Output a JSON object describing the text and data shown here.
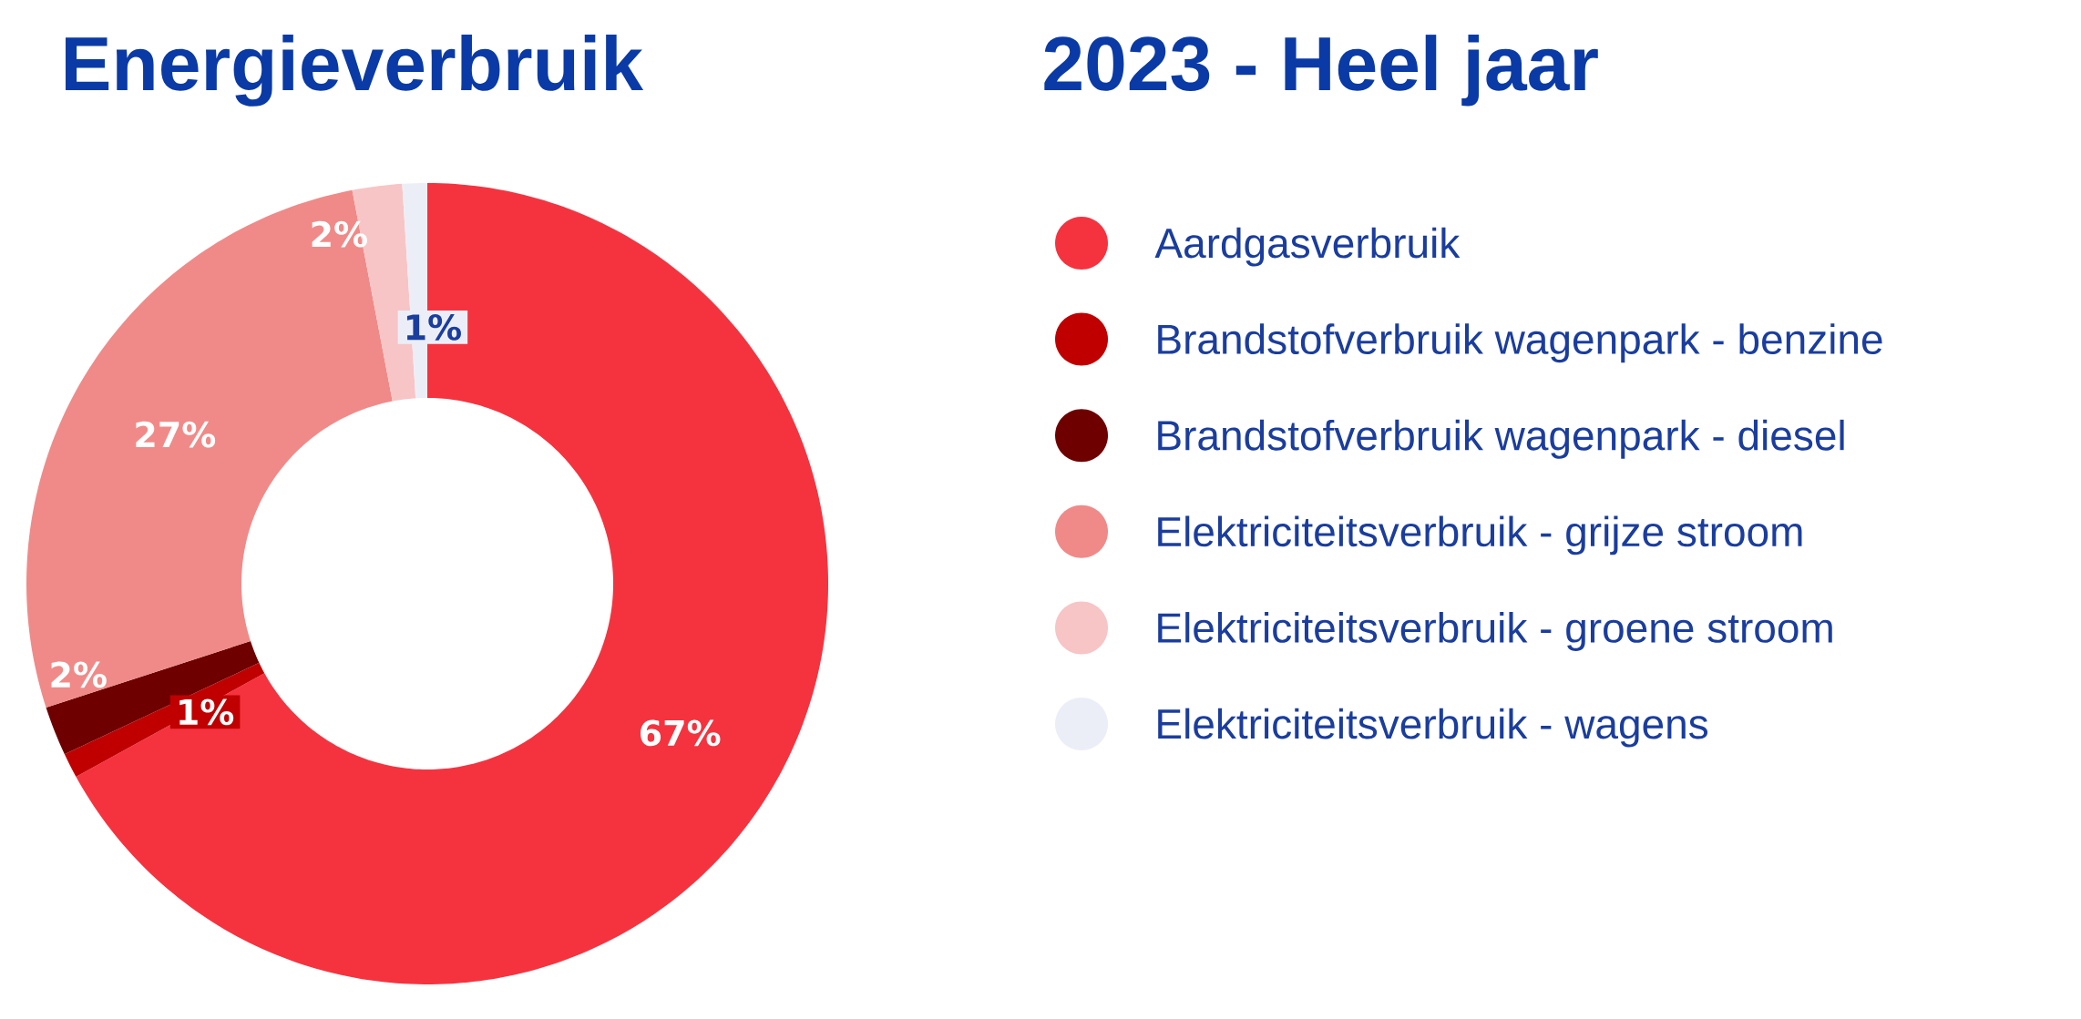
{
  "chart_data": {
    "type": "donut",
    "title": "Energieverbruik",
    "subtitle": "2023 - Heel jaar",
    "categories": [
      "Aardgasverbruik",
      "Brandstofverbruik wagenpark - benzine",
      "Brandstofverbruik wagenpark - diesel",
      "Elektriciteitsverbruik - grijze stroom",
      "Elektriciteitsverbruik - groene stroom",
      "Elektriciteitsverbruik - wagens"
    ],
    "values": [
      67,
      1,
      2,
      27,
      2,
      1
    ],
    "colors": [
      "#f5333f",
      "#c00000",
      "#6e0000",
      "#f08a88",
      "#f7c5c6",
      "#eceef7"
    ],
    "value_labels": [
      "67%",
      "1%",
      "2%",
      "27%",
      "2%",
      "1%"
    ],
    "legend": "right"
  }
}
